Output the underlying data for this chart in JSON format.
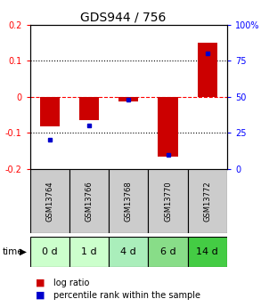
{
  "title": "GDS944 / 756",
  "samples": [
    "GSM13764",
    "GSM13766",
    "GSM13768",
    "GSM13770",
    "GSM13772"
  ],
  "time_labels": [
    "0 d",
    "1 d",
    "4 d",
    "6 d",
    "14 d"
  ],
  "log_ratios": [
    -0.082,
    -0.065,
    -0.012,
    -0.165,
    0.15
  ],
  "percentile_ranks": [
    20,
    30,
    48,
    10,
    80
  ],
  "ylim": [
    -0.2,
    0.2
  ],
  "right_ylim": [
    0,
    100
  ],
  "bar_color": "#cc0000",
  "dot_color": "#0000cc",
  "sample_box_color": "#cccccc",
  "time_box_colors": [
    "#ccffcc",
    "#ccffcc",
    "#aaeebb",
    "#88dd88",
    "#44cc44"
  ],
  "title_fontsize": 10,
  "tick_fontsize": 7,
  "sample_fontsize": 6,
  "time_fontsize": 8,
  "legend_fontsize": 7
}
